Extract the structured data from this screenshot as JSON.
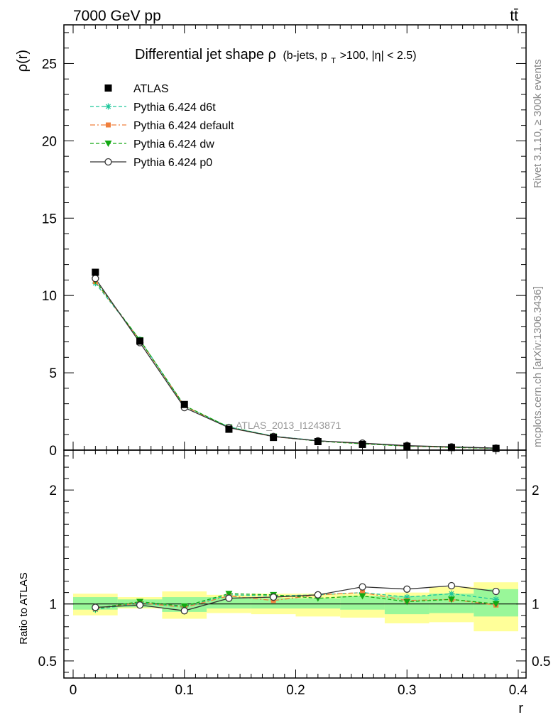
{
  "header": {
    "energy_label": "7000 GeV pp",
    "process_label": "tt̄"
  },
  "side_labels": {
    "rivet": "Rivet 3.1.10, ≥ 300k events",
    "mcplots": "mcplots.cern.ch [arXiv:1306.3436]"
  },
  "chart_data": [
    {
      "type": "line",
      "title": "Differential jet shape ρ",
      "title_sub": "(b-jets, p",
      "title_sub_T": "T",
      "title_sub_rest": ">100, |η| < 2.5)",
      "ylabel": "ρ(r)",
      "xlabel": "r",
      "watermark": "ATLAS_2013_I1243871",
      "xlim": [
        0,
        0.4
      ],
      "ylim": [
        0,
        27.5
      ],
      "yticks": [
        0,
        5,
        10,
        15,
        20,
        25
      ],
      "ytick_labels": [
        "0",
        "5",
        "10",
        "15",
        "20",
        "25"
      ],
      "legend_position": "top-left",
      "x": [
        0.02,
        0.06,
        0.1,
        0.14,
        0.18,
        0.22,
        0.26,
        0.3,
        0.34,
        0.38
      ],
      "series": [
        {
          "name": "ATLAS",
          "color": "#000000",
          "marker": "square",
          "line": "none",
          "values": [
            11.5,
            7.05,
            2.95,
            1.35,
            0.82,
            0.55,
            0.37,
            0.25,
            0.17,
            0.11
          ]
        },
        {
          "name": "Pythia 6.424 d6t",
          "color": "#1fc79b",
          "marker": "star",
          "line": "dashed",
          "values": [
            10.8,
            7.15,
            2.85,
            1.5,
            0.9,
            0.61,
            0.42,
            0.27,
            0.19,
            0.12
          ]
        },
        {
          "name": "Pythia 6.424 default",
          "color": "#f07f3c",
          "marker": "square-small",
          "line": "dashdot",
          "values": [
            10.9,
            7.1,
            2.85,
            1.45,
            0.87,
            0.6,
            0.42,
            0.26,
            0.18,
            0.11
          ]
        },
        {
          "name": "Pythia 6.424 dw",
          "color": "#12a812",
          "marker": "triangle-down",
          "line": "dashed",
          "values": [
            10.95,
            7.12,
            2.88,
            1.48,
            0.89,
            0.58,
            0.41,
            0.26,
            0.18,
            0.11
          ]
        },
        {
          "name": "Pythia 6.424 p0",
          "color": "#333333",
          "marker": "open-circle",
          "line": "solid",
          "values": [
            11.1,
            6.95,
            2.75,
            1.45,
            0.88,
            0.6,
            0.45,
            0.29,
            0.21,
            0.13
          ]
        }
      ]
    },
    {
      "type": "line",
      "ylabel": "Ratio to ATLAS",
      "xlabel": "r",
      "xlim": [
        0,
        0.4
      ],
      "ylim": [
        0.35,
        2.35
      ],
      "yticks": [
        0.5,
        1,
        2
      ],
      "ytick_labels": [
        "0.5",
        "1",
        "2"
      ],
      "xticks": [
        0,
        0.1,
        0.2,
        0.3,
        0.4
      ],
      "xtick_labels": [
        "0",
        "0.1",
        "0.2",
        "0.3",
        "0.4"
      ],
      "bands": {
        "bin_edges": [
          0,
          0.04,
          0.08,
          0.12,
          0.16,
          0.2,
          0.24,
          0.28,
          0.32,
          0.36,
          0.4
        ],
        "inner": {
          "color": "#99f799",
          "lo": [
            0.95,
            0.97,
            0.93,
            0.96,
            0.96,
            0.96,
            0.95,
            0.91,
            0.92,
            0.89
          ],
          "hi": [
            1.06,
            1.04,
            1.06,
            1.06,
            1.05,
            1.05,
            1.07,
            1.07,
            1.09,
            1.13
          ]
        },
        "outer": {
          "color": "#ffff99",
          "lo": [
            0.9,
            0.96,
            0.87,
            0.92,
            0.91,
            0.89,
            0.88,
            0.83,
            0.84,
            0.76
          ],
          "hi": [
            1.09,
            1.06,
            1.11,
            1.08,
            1.09,
            1.09,
            1.09,
            1.1,
            1.15,
            1.19
          ]
        }
      },
      "x": [
        0.02,
        0.06,
        0.1,
        0.14,
        0.18,
        0.22,
        0.26,
        0.3,
        0.34,
        0.38
      ],
      "series": [
        {
          "name": "Pythia 6.424 d6t",
          "color": "#1fc79b",
          "marker": "star",
          "line": "dashed",
          "values": [
            0.95,
            1.01,
            0.97,
            1.08,
            1.07,
            1.08,
            1.1,
            1.06,
            1.09,
            1.04
          ]
        },
        {
          "name": "Pythia 6.424 default",
          "color": "#f07f3c",
          "marker": "square-small",
          "line": "dashdot",
          "values": [
            0.96,
            1.01,
            0.97,
            1.07,
            1.03,
            1.08,
            1.1,
            1.03,
            1.04,
            0.99
          ]
        },
        {
          "name": "Pythia 6.424 dw",
          "color": "#12a812",
          "marker": "triangle-down",
          "line": "dashed",
          "values": [
            0.96,
            1.02,
            0.98,
            1.09,
            1.08,
            1.05,
            1.07,
            1.02,
            1.04,
            1.0
          ]
        },
        {
          "name": "Pythia 6.424 p0",
          "color": "#333333",
          "marker": "open-circle",
          "line": "solid",
          "values": [
            0.97,
            0.99,
            0.94,
            1.05,
            1.06,
            1.08,
            1.15,
            1.13,
            1.16,
            1.11
          ]
        }
      ]
    }
  ]
}
